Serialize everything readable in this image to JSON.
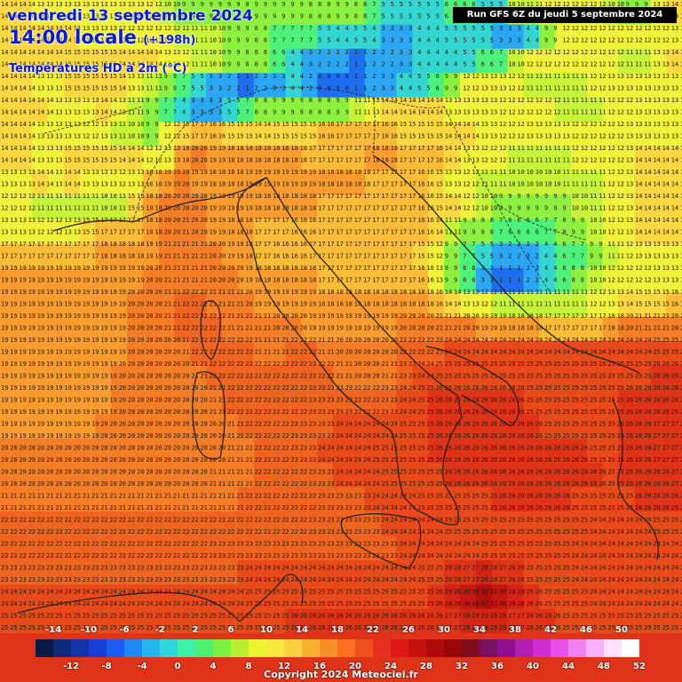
{
  "map": {
    "title_line1": "vendredi 13 septembre 2024",
    "title_line2": "14:00 locale",
    "title_lead": "(+198h)",
    "title_line3": "Températures HD à 2m (°C)",
    "run_info": "Run GFS 6Z du jeudi 5 septembre 2024",
    "copyright": "Copyright 2024 Meteociel.fr",
    "units": "°C"
  },
  "legend": {
    "top_labels": [
      "-14",
      "-10",
      "-6",
      "-2",
      "2",
      "6",
      "10",
      "14",
      "18",
      "22",
      "26",
      "30",
      "34",
      "38",
      "42",
      "46",
      "50"
    ],
    "bottom_labels": [
      "-12",
      "-8",
      "-4",
      "0",
      "4",
      "8",
      "12",
      "16",
      "20",
      "24",
      "28",
      "32",
      "36",
      "40",
      "44",
      "48",
      "52"
    ],
    "colors": [
      "#0a1a48",
      "#0d2a78",
      "#1234a8",
      "#1a3fd8",
      "#1d5cf0",
      "#1f88f5",
      "#25b6f0",
      "#2fd8d8",
      "#3cf0a8",
      "#4cf070",
      "#7cf040",
      "#b8f030",
      "#e8f530",
      "#f8e840",
      "#f8d040",
      "#f8b030",
      "#f89028",
      "#f87020",
      "#f05020",
      "#e83020",
      "#e01818",
      "#c81010",
      "#b00c0c",
      "#980808",
      "#800c1c",
      "#7c1060",
      "#901090",
      "#b020b0",
      "#d030d0",
      "#e850e8",
      "#f080f0",
      "#f8b0f8",
      "#fce0fc",
      "#ffffff"
    ]
  },
  "field": {
    "rows": [
      "14 14 13 13 13 13 13 13 13 12 10 9 9 9 9 8 9 9 9 8 8 9 8 7 5 5 5 5 6 6 5 5 10 11 12 12 12 12 10 9 9 13 14",
      "14 14 14 14 14 13 13 12 12 12 12 11 11 10 9 9 8 7 7 7 5 4 5 4 3 3 4 4 5 5 5 3 3 4 9 12 12 12 12 12 12 12 13",
      "14 14 14 14 15 15 15 14 14 14 13 12 11 10 9 8 8 6 4 3 2 2 1 2 2 3 4 4 4 5 6 7 10 12 12 12 12 12 12 11 11 13 14",
      "14 14 13 13 15 15 15 14 13 11 9 7 5 3 2 1 2 3 4 2 0 0 1 2 3 4 5 6 9 12 13 13 12 11 11 11 11 12 13 13 13 13 13",
      "14 14 14 13 13 13 14 13 11 9 7 4 3 3 5 7 8 9 9 8 8 9 11 13 14 14 14 14 13 13 13 12 12 12 12 11 11 11 12 12 13 13 13",
      "14 14 13 13 13 12 13 11 10 9 12 15 17 16 15 15 14 15 15 15 16 17 17 17 16 15 15 15 14 14 13 12 12 13 13 13 12 12 12 13 13 13 13",
      "14 14 13 13 15 15 15 14 14 12 13 18 20 19 18 18 18 18 18 17 17 17 17 18 18 17 17 16 14 13 12 12 11 11 11 11 12 12 12 13 14 14 14",
      "13 13 14 13 14 13 13 12 13 16 19 20 19 18 18 19 19 19 19 19 18 18 18 17 17 17 16 15 13 12 11 11 10 10 10 11 11 11 12 13 14 14 14",
      "12 12 11 11 11 11 10 11 15 18 20 20 20 19 19 19 18 18 18 18 17 17 17 17 17 17 16 15 14 12 10 9 9 9 9 9 10 11 12 13 14 14 14",
      "13 13 12 12 13 15 17 17 17 18 20 21 20 19 18 18 17 17 16 16 17 17 17 17 17 17 16 14 11 9 8 7 6 6 7 8 9 10 12 13 14 14 14",
      "17 17 17 17 17 17 18 18 18 19 21 21 21 20 19 18 17 16 16 17 17 17 17 17 17 17 15 12 9 7 5 3 2 2 4 6 7 9 11 12 13 13 13",
      "19 19 19 19 19 19 19 19 19 20 21 21 21 20 20 19 18 18 18 18 17 17 17 17 17 17 16 13 9 6 3 1 1 2 4 6 8 10 12 12 12 13 13",
      "19 19 19 19 19 19 19 19 20 20 21 22 22 21 21 20 19 19 19 19 18 18 18 18 18 18 18 16 14 13 12 11 11 11 11 11 11 12 13 14 15 15 16",
      "19 19 19 19 19 19 19 19 20 20 21 22 22 22 21 21 21 20 20 19 19 19 19 19 19 20 20 21 21 20 19 19 18 18 17 17 17 17 18 20 21 21 20",
      "19 19 19 19 19 19 19 19 20 20 20 21 22 22 22 22 21 21 22 22 21 20 20 20 20 22 22 23 24 24 24 24 24 24 24 24 24 24 24 24 24 25 25",
      "19 19 19 19 19 19 19 20 20 20 20 20 21 22 22 22 22 22 22 23 22 21 20 20 21 23 24 25 25 25 25 25 25 25 25 25 25 25 25 25 25 26 26",
      "19 19 19 19 19 19 19 20 20 20 20 20 20 21 22 22 22 22 22 23 23 23 22 22 23 24 25 26 26 26 26 26 26 25 25 25 25 25 25 26 26 26 26",
      "19 19 19 19 19 19 20 20 20 20 20 20 20 20 21 22 22 22 23 23 23 24 24 24 24 25 25 26 26 26 26 26 26 26 25 25 25 25 25 26 26 27 27",
      "20 20 20 20 20 20 20 20 20 20 20 20 20 20 21 21 22 22 23 23 24 24 24 25 25 25 25 26 26 26 26 26 26 26 26 26 26 25 25 26 26 27 27",
      "20 20 20 20 20 20 20 20 20 20 20 20 20 21 21 21 22 22 22 23 23 24 24 24 25 25 25 25 26 26 26 26 26 26 26 26 26 26 25 26 26 26 27",
      "21 21 21 21 21 21 21 21 21 21 21 21 21 21 21 22 22 22 22 22 23 23 23 24 24 24 25 25 25 25 25 26 26 26 26 26 25 25 25 25 26 26 26",
      "22 22 22 22 22 22 22 22 22 22 22 22 22 22 22 22 22 22 22 23 23 23 23 23 24 24 24 24 25 25 25 25 25 25 25 25 25 24 24 24 24 25 25",
      "22 22 22 22 22 22 22 22 22 22 22 22 22 23 23 23 23 23 23 23 23 23 23 23 23 24 24 24 24 24 25 25 25 25 25 25 24 24 24 24 24 24 24",
      "23 23 23 23 23 23 23 23 23 23 23 23 23 23 23 24 24 24 24 24 24 24 24 24 24 24 25 25 26 27 28 27 26 25 25 25 24 24 24 24 24 24 24",
      "24 24 24 24 24 24 24 24 24 24 24 24 24 24 24 25 25 25 25 25 25 25 25 25 25 25 25 26 28 30 32 30 28 26 25 25 25 24 24 24 24 24 24",
      "25 25 25 25 25 25 25 25 25 25 25 25 25 25 25 25 25 25 26 26 26 26 26 26 26 26 26 26 27 28 29 28 27 26 26 25 25 25 25 25 25 25 25",
      "26 26 26 26 26 26 26 26 26 26 26 26 26 26 26 26 26 26 26 26 27 27 27 27 27 27 27 27 27 27 27 27 27 27 27 26 26 26 26 26 26 26 26",
      "27 27 27 27 27 27 27 27 27 27 27 27 27 27 27 27 27 27 27 27 27 27 27 27 27 27 27 27 27 27 27 27 27 27 27 27 27 27 27 27 27 27 27"
    ]
  }
}
